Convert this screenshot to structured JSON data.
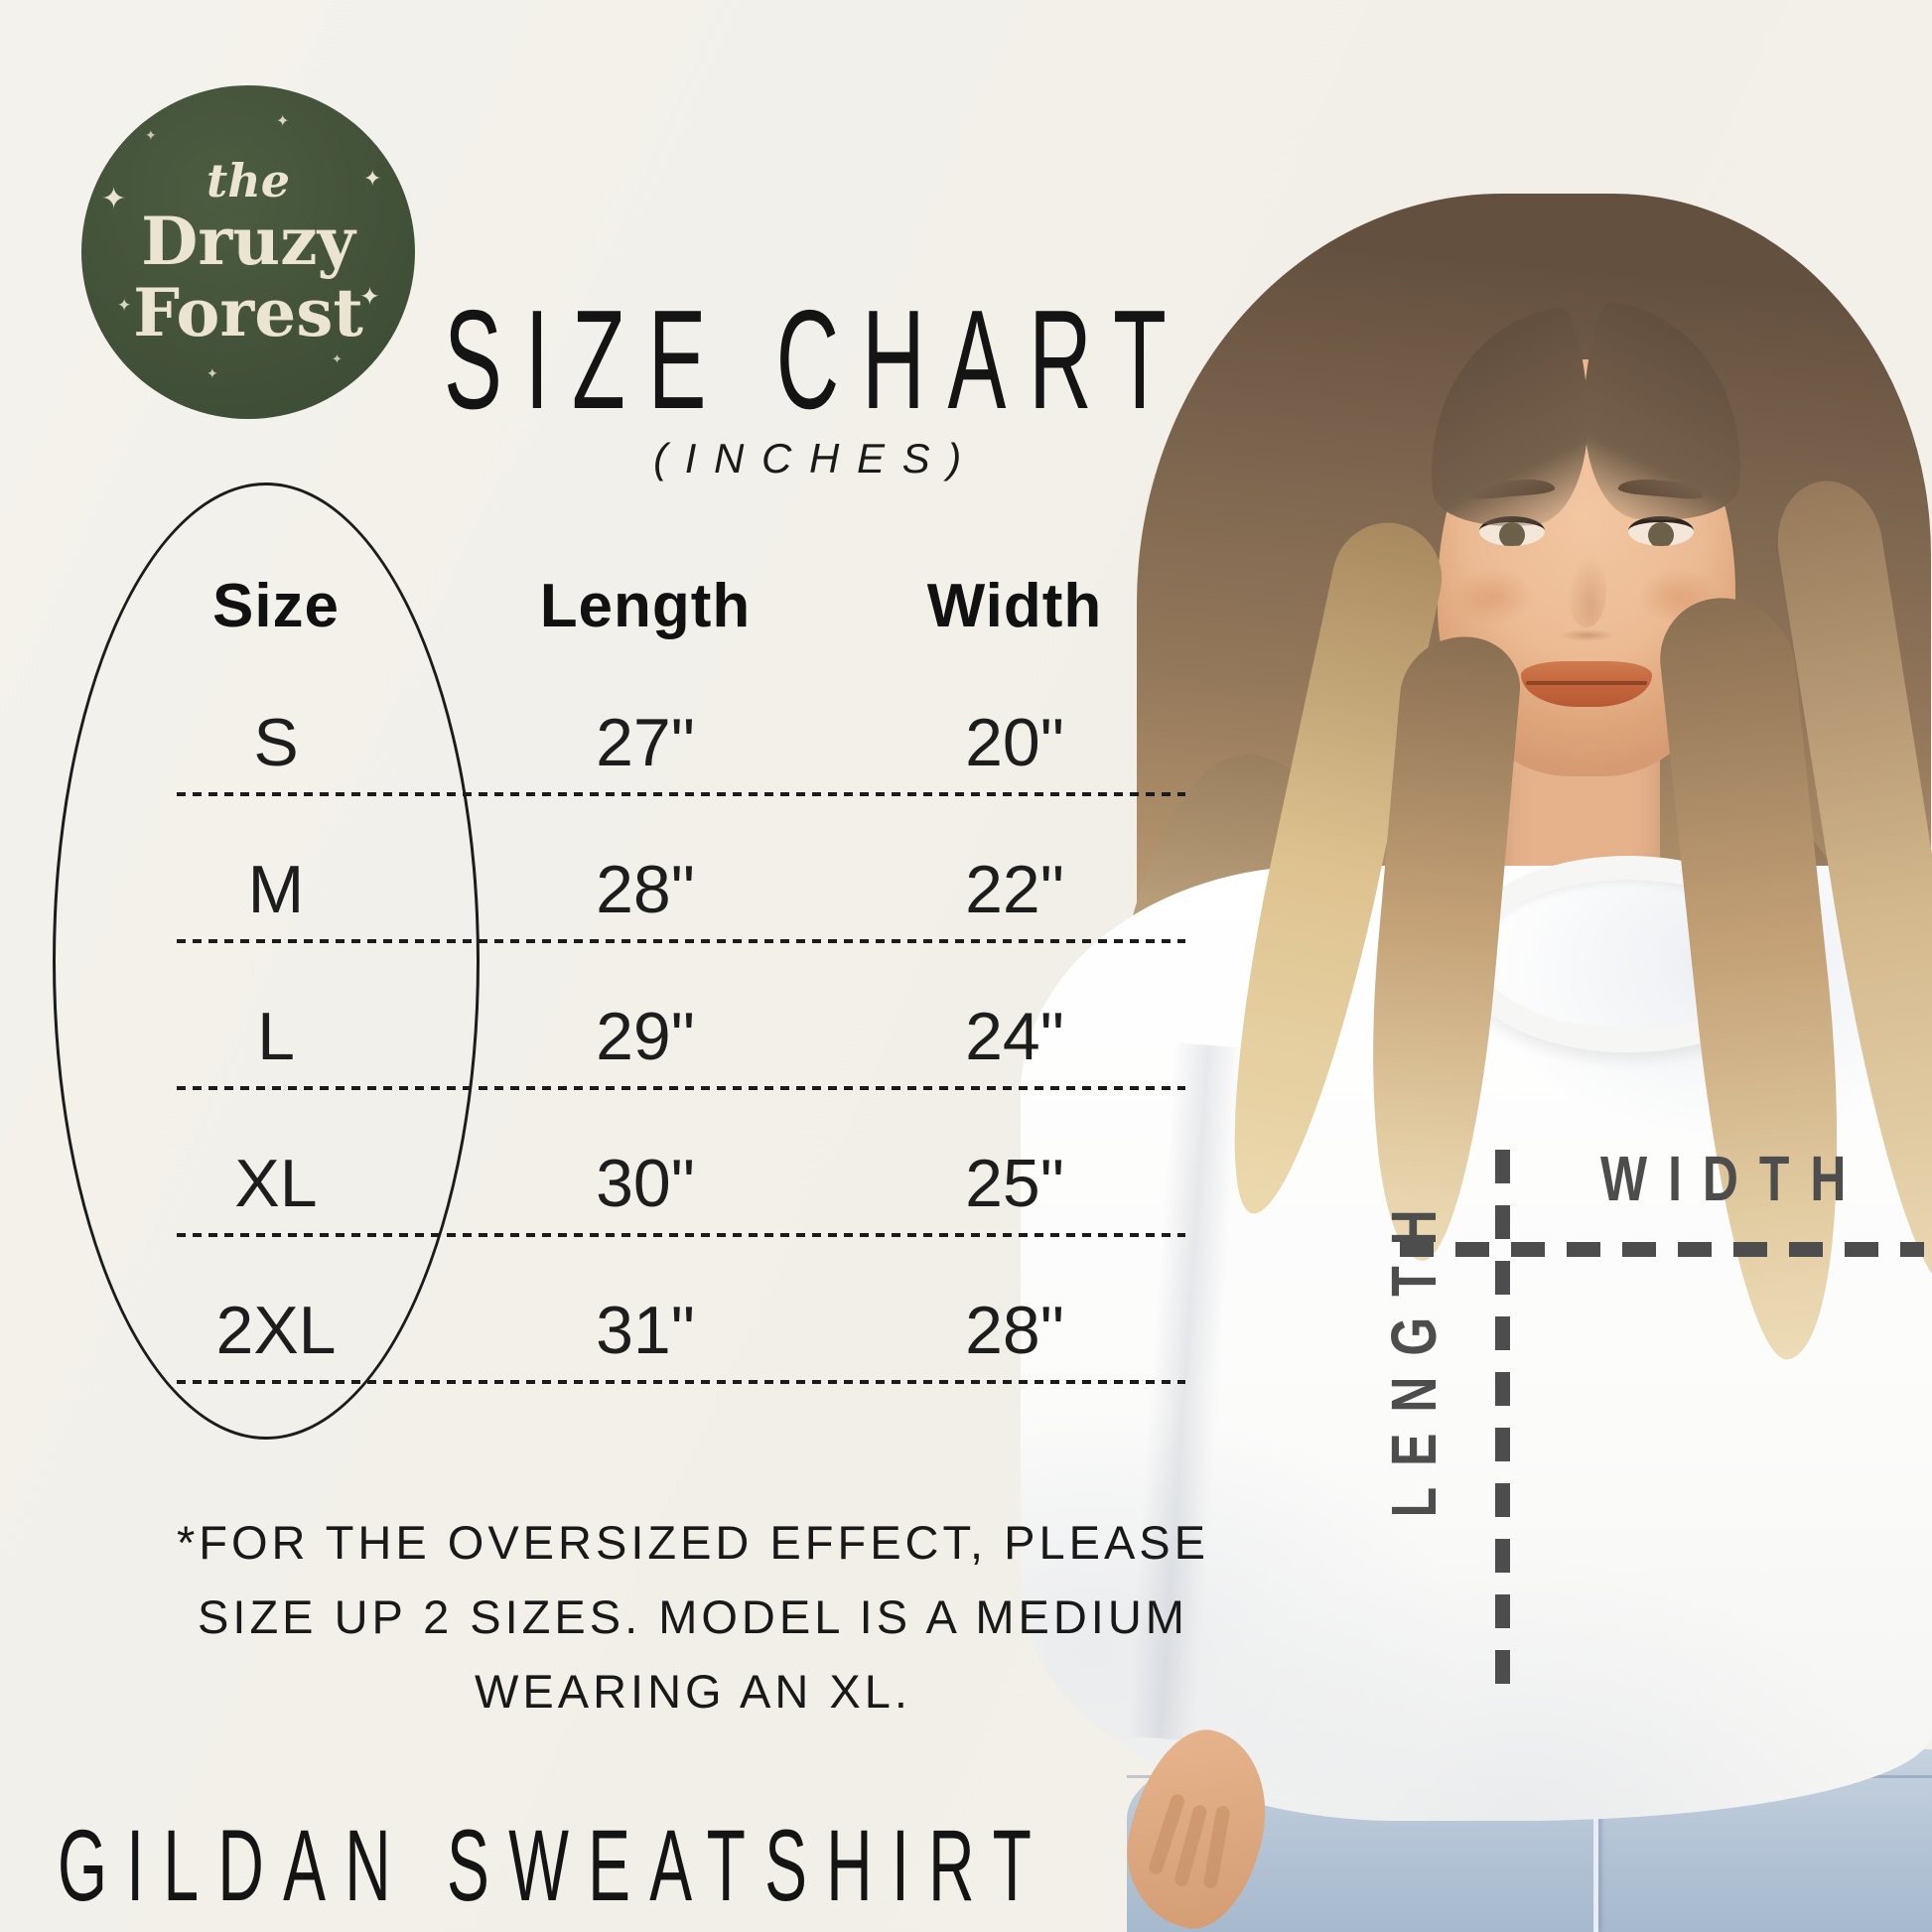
{
  "logo": {
    "line1": "the",
    "line2": "Druzy",
    "line3": "Forest",
    "sparkle": "✦",
    "background_color": "#45543b",
    "text_color": "#ebe4d0"
  },
  "header": {
    "title": "SIZE CHART",
    "subtitle": "(INCHES)"
  },
  "chart_data": {
    "type": "table",
    "title": "SIZE CHART",
    "units": "(INCHES)",
    "columns": [
      "Size",
      "Length",
      "Width"
    ],
    "rows": [
      {
        "size": "S",
        "length": "27\"",
        "width": "20\""
      },
      {
        "size": "M",
        "length": "28\"",
        "width": "22\""
      },
      {
        "size": "L",
        "length": "29\"",
        "width": "24\""
      },
      {
        "size": "XL",
        "length": "30\"",
        "width": "25\""
      },
      {
        "size": "2XL",
        "length": "31\"",
        "width": "28\""
      }
    ],
    "highlight": "Size column circled with an ellipse",
    "legend_position": "none",
    "grid": "dashed row separators"
  },
  "note": {
    "lines": [
      "*FOR THE OVERSIZED EFFECT, PLEASE",
      "SIZE UP 2 SIZES. MODEL IS A MEDIUM",
      "WEARING AN XL."
    ]
  },
  "footer": {
    "product": "GILDAN SWEATSHIRT"
  },
  "diagram": {
    "width_label": "WIDTH",
    "length_label": "LENGTH",
    "line_color": "#4d4d4d"
  },
  "colors": {
    "background": "#f2f0ea",
    "text_primary": "#141414",
    "logo_green": "#45543b",
    "logo_cream": "#ebe4d0",
    "measure_gray": "#4d4d4d",
    "jeans_blue": "#b7c7d9",
    "sweatshirt_white": "#fbfbfa"
  }
}
